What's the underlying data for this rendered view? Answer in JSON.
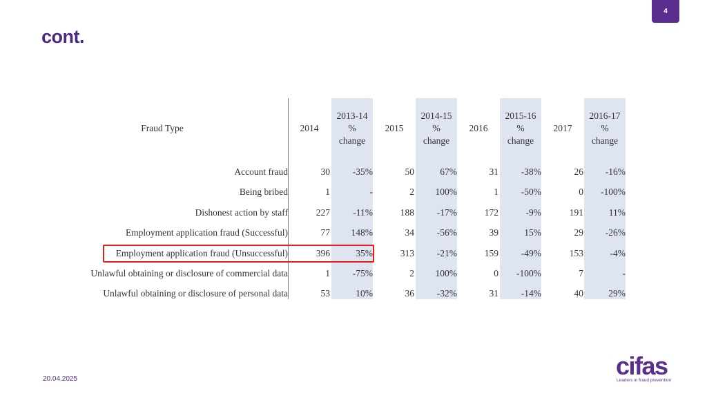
{
  "slide": {
    "number": "4",
    "title": "cont.",
    "date": "20.04.2025"
  },
  "logo": {
    "wordmark": "cifas",
    "tagline": "Leaders in fraud prevention",
    "accent_color": "#5b2d8e"
  },
  "table": {
    "headers": {
      "fraud_type": "Fraud Type",
      "y2014": "2014",
      "c1314": [
        "2013-14",
        "%",
        "change"
      ],
      "y2015": "2015",
      "c1415": [
        "2014-15",
        "%",
        "change"
      ],
      "y2016": "2016",
      "c1516": [
        "2015-16",
        "%",
        "change"
      ],
      "y2017": "2017",
      "c1617": [
        "2016-17",
        "%",
        "change"
      ]
    },
    "rows": [
      [
        "Account fraud",
        "30",
        "-35%",
        "50",
        "67%",
        "31",
        "-38%",
        "26",
        "-16%"
      ],
      [
        "Being bribed",
        "1",
        "-",
        "2",
        "100%",
        "1",
        "-50%",
        "0",
        "-100%"
      ],
      [
        "Dishonest action by staff",
        "227",
        "-11%",
        "188",
        "-17%",
        "172",
        "-9%",
        "191",
        "11%"
      ],
      [
        "Employment application fraud (Successful)",
        "77",
        "148%",
        "34",
        "-56%",
        "39",
        "15%",
        "29",
        "-26%"
      ],
      [
        "Employment application fraud (Unsuccessful)",
        "396",
        "35%",
        "313",
        "-21%",
        "159",
        "-49%",
        "153",
        "-4%"
      ],
      [
        "Unlawful obtaining or disclosure of commercial data",
        "1",
        "-75%",
        "2",
        "100%",
        "0",
        "-100%",
        "7",
        "-"
      ],
      [
        "Unlawful obtaining or disclosure of personal data",
        "53",
        "10%",
        "36",
        "-32%",
        "31",
        "-14%",
        "40",
        "29%"
      ]
    ],
    "highlighted_row": "Employment application fraud (Unsuccessful)",
    "highlight_color": "#e21c1c",
    "change_column_bg": "#dfe4f1"
  }
}
